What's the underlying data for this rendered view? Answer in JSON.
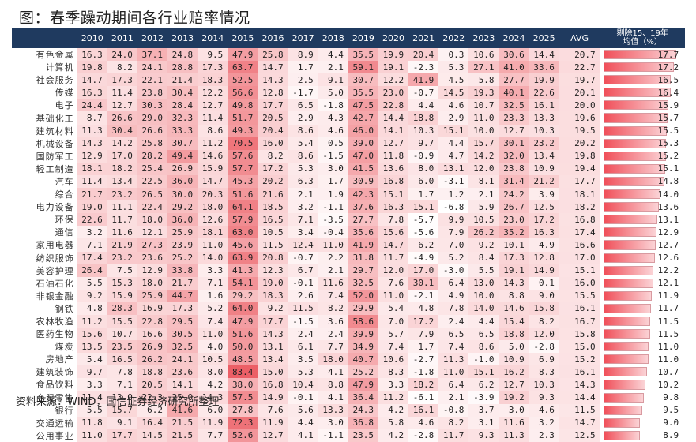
{
  "title": "图：春季躁动期间各行业赔率情况",
  "source": "资料来源：WIND，国信证券经济研究所整理",
  "chart_data": {
    "type": "table",
    "title": "图：春季躁动期间各行业赔率情况",
    "columns": [
      "2010",
      "2011",
      "2012",
      "2013",
      "2014",
      "2015",
      "2016",
      "2017",
      "2018",
      "2019",
      "2020",
      "2021",
      "2022",
      "2023",
      "2024",
      "2025",
      "AVG",
      "剔除15、19年均值（%）"
    ],
    "rows": [
      {
        "name": "有色金属",
        "values": [
          16.3,
          24.0,
          37.1,
          24.8,
          9.5,
          47.9,
          25.8,
          8.9,
          4.4,
          35.5,
          19.9,
          20.4,
          0.3,
          10.6,
          30.6,
          14.4,
          20.7,
          17.7
        ]
      },
      {
        "name": "计算机",
        "values": [
          19.8,
          8.2,
          24.1,
          28.8,
          17.3,
          63.7,
          14.7,
          1.7,
          2.1,
          59.1,
          19.1,
          -2.3,
          5.3,
          27.1,
          41.0,
          33.6,
          22.7,
          17.2
        ]
      },
      {
        "name": "社会服务",
        "values": [
          14.7,
          17.3,
          22.1,
          21.4,
          18.3,
          52.5,
          14.3,
          2.5,
          9.1,
          30.7,
          12.2,
          41.9,
          4.5,
          5.8,
          27.7,
          19.9,
          19.7,
          16.5
        ]
      },
      {
        "name": "传媒",
        "values": [
          16.3,
          11.4,
          23.8,
          30.4,
          12.2,
          56.6,
          12.8,
          -1.7,
          5.0,
          35.5,
          23.0,
          -0.7,
          14.5,
          19.3,
          40.1,
          22.6,
          20.1,
          16.4
        ]
      },
      {
        "name": "电子",
        "values": [
          24.4,
          12.7,
          30.3,
          28.4,
          12.7,
          49.8,
          17.7,
          6.5,
          -1.8,
          47.5,
          22.8,
          4.4,
          4.6,
          10.7,
          32.5,
          16.1,
          20.0,
          15.9
        ]
      },
      {
        "name": "基础化工",
        "values": [
          8.7,
          26.6,
          29.0,
          32.3,
          11.4,
          51.7,
          20.5,
          2.9,
          4.3,
          42.7,
          14.4,
          18.8,
          2.9,
          11.0,
          23.3,
          13.3,
          19.6,
          15.7
        ]
      },
      {
        "name": "建筑材料",
        "values": [
          11.3,
          30.4,
          26.6,
          33.3,
          8.6,
          49.3,
          20.4,
          8.6,
          4.6,
          46.0,
          14.1,
          10.3,
          15.1,
          10.0,
          12.7,
          10.3,
          19.5,
          15.5
        ]
      },
      {
        "name": "机械设备",
        "values": [
          14.3,
          14.2,
          25.8,
          30.7,
          11.2,
          70.5,
          16.0,
          5.4,
          0.5,
          39.0,
          12.7,
          9.7,
          4.4,
          15.7,
          30.1,
          23.2,
          20.2,
          15.3
        ]
      },
      {
        "name": "国防军工",
        "values": [
          12.9,
          17.0,
          28.2,
          49.4,
          14.6,
          57.6,
          8.2,
          8.6,
          -1.5,
          47.0,
          11.8,
          -0.9,
          4.7,
          14.2,
          32.0,
          13.4,
          19.8,
          15.2
        ]
      },
      {
        "name": "轻工制造",
        "values": [
          18.1,
          18.2,
          25.4,
          26.9,
          15.9,
          57.7,
          17.2,
          5.3,
          3.0,
          41.5,
          13.6,
          8.0,
          13.1,
          12.0,
          23.8,
          10.9,
          19.4,
          15.1
        ]
      },
      {
        "name": "汽车",
        "values": [
          11.4,
          13.4,
          22.5,
          36.0,
          14.7,
          45.3,
          20.2,
          6.3,
          1.7,
          30.9,
          16.8,
          6.0,
          -3.1,
          8.1,
          31.4,
          21.2,
          17.7,
          14.8
        ]
      },
      {
        "name": "综合",
        "values": [
          21.7,
          23.2,
          26.5,
          30.0,
          20.3,
          51.6,
          21.6,
          2.1,
          1.9,
          42.3,
          15.1,
          1.7,
          1.2,
          2.1,
          24.2,
          3.9,
          18.1,
          14.0
        ]
      },
      {
        "name": "电力设备",
        "values": [
          19.0,
          11.1,
          22.4,
          29.2,
          18.0,
          64.1,
          18.5,
          3.2,
          -1.1,
          37.6,
          16.3,
          15.1,
          -6.8,
          5.9,
          26.7,
          12.5,
          18.2,
          13.6
        ]
      },
      {
        "name": "环保",
        "values": [
          22.6,
          11.7,
          18.0,
          36.0,
          12.6,
          57.9,
          16.5,
          7.1,
          -3.5,
          27.7,
          7.8,
          -5.7,
          9.9,
          10.5,
          23.0,
          17.2,
          16.8,
          13.1
        ]
      },
      {
        "name": "通信",
        "values": [
          3.2,
          11.6,
          12.1,
          25.9,
          18.1,
          63.0,
          10.5,
          3.4,
          -0.4,
          35.6,
          15.6,
          -5.6,
          7.9,
          26.2,
          35.2,
          16.3,
          17.4,
          12.9
        ]
      },
      {
        "name": "家用电器",
        "values": [
          7.1,
          21.9,
          27.3,
          23.9,
          11.0,
          45.6,
          11.5,
          12.4,
          11.0,
          41.9,
          14.7,
          6.2,
          7.0,
          9.2,
          10.1,
          4.9,
          16.6,
          12.7
        ]
      },
      {
        "name": "纺织服饰",
        "values": [
          17.4,
          23.2,
          23.6,
          25.2,
          14.0,
          63.9,
          20.8,
          -0.7,
          2.2,
          31.8,
          11.7,
          -4.9,
          5.2,
          8.4,
          17.3,
          12.8,
          17.0,
          12.6
        ]
      },
      {
        "name": "美容护理",
        "values": [
          26.4,
          7.5,
          12.9,
          33.8,
          3.3,
          41.3,
          12.3,
          6.7,
          2.1,
          29.7,
          12.0,
          17.0,
          -3.0,
          5.5,
          19.1,
          14.9,
          15.1,
          12.2
        ]
      },
      {
        "name": "石油石化",
        "values": [
          5.5,
          15.3,
          18.0,
          21.7,
          7.1,
          54.1,
          19.0,
          -0.1,
          11.6,
          32.5,
          7.6,
          30.1,
          6.4,
          13.0,
          14.3,
          0.1,
          16.0,
          12.1
        ]
      },
      {
        "name": "非银金融",
        "values": [
          9.2,
          15.9,
          25.9,
          44.7,
          1.6,
          29.2,
          18.3,
          2.6,
          7.4,
          52.0,
          11.0,
          -2.1,
          4.9,
          10.0,
          8.8,
          9.0,
          15.5,
          11.9
        ]
      },
      {
        "name": "钢铁",
        "values": [
          4.8,
          28.3,
          16.9,
          17.3,
          5.2,
          64.0,
          9.2,
          11.5,
          8.2,
          29.9,
          5.4,
          4.8,
          7.8,
          14.0,
          14.6,
          15.8,
          16.1,
          11.7
        ]
      },
      {
        "name": "农林牧渔",
        "values": [
          11.2,
          15.5,
          22.8,
          29.5,
          7.4,
          47.9,
          17.7,
          -1.5,
          3.6,
          58.6,
          7.0,
          17.2,
          2.4,
          4.4,
          15.4,
          8.2,
          16.7,
          11.5
        ]
      },
      {
        "name": "医药生物",
        "values": [
          15.6,
          10.7,
          16.6,
          30.5,
          11.0,
          51.6,
          14.3,
          2.4,
          2.4,
          39.9,
          5.7,
          7.9,
          6.5,
          6.5,
          18.8,
          12.0,
          15.8,
          11.5
        ]
      },
      {
        "name": "煤炭",
        "values": [
          13.5,
          23.5,
          26.9,
          32.5,
          4.0,
          50.0,
          13.1,
          6.1,
          7.7,
          34.9,
          7.4,
          1.7,
          7.4,
          8.6,
          5.0,
          -2.8,
          15.0,
          11.0
        ]
      },
      {
        "name": "房地产",
        "values": [
          5.4,
          16.5,
          26.2,
          24.1,
          10.5,
          48.5,
          13.4,
          3.5,
          18.0,
          40.7,
          10.6,
          -2.7,
          11.3,
          -1.0,
          10.9,
          6.9,
          15.2,
          11.0
        ]
      },
      {
        "name": "建筑装饰",
        "values": [
          9.7,
          7.8,
          18.8,
          23.6,
          8.0,
          83.4,
          15.0,
          5.3,
          4.1,
          25.2,
          8.3,
          -1.8,
          11.0,
          15.1,
          16.2,
          8.3,
          16.1,
          10.7
        ]
      },
      {
        "name": "食品饮料",
        "values": [
          3.3,
          7.1,
          20.5,
          14.1,
          4.2,
          38.0,
          16.8,
          10.4,
          8.8,
          47.9,
          3.3,
          18.2,
          6.4,
          6.2,
          12.7,
          10.3,
          14.3,
          10.2
        ]
      },
      {
        "name": "商贸零售",
        "values": [
          11.4,
          13.0,
          22.3,
          25.0,
          14.3,
          57.5,
          14.9,
          -0.1,
          4.1,
          36.4,
          11.2,
          -6.1,
          2.1,
          -3.9,
          19.2,
          9.3,
          14.4,
          9.8
        ]
      },
      {
        "name": "银行",
        "values": [
          5.5,
          15.7,
          6.2,
          41.6,
          6.0,
          27.8,
          7.6,
          5.6,
          13.3,
          24.3,
          4.2,
          16.1,
          -0.8,
          3.7,
          3.0,
          4.6,
          11.5,
          9.5
        ]
      },
      {
        "name": "交通运输",
        "values": [
          11.8,
          9.1,
          16.4,
          21.5,
          11.9,
          72.3,
          11.9,
          4.4,
          3.0,
          36.8,
          5.8,
          4.6,
          8.2,
          3.1,
          11.6,
          3.2,
          14.7,
          9.0
        ]
      },
      {
        "name": "公用事业",
        "values": [
          11.0,
          17.7,
          14.5,
          21.5,
          7.7,
          52.6,
          12.7,
          4.1,
          -1.1,
          23.5,
          4.2,
          -2.8,
          11.7,
          9.3,
          11.3,
          2.3,
          12.5,
          8.9
        ]
      }
    ],
    "heatmap_colors": {
      "low": "#ffffff",
      "high": "#ec5f66"
    },
    "header_bg": "#1f3a5f",
    "bar_color": "#f0505a",
    "ylabel": "",
    "xlabel": ""
  },
  "header": {
    "last_line1": "剔除15、19年",
    "last_line2": "均值（%）"
  }
}
